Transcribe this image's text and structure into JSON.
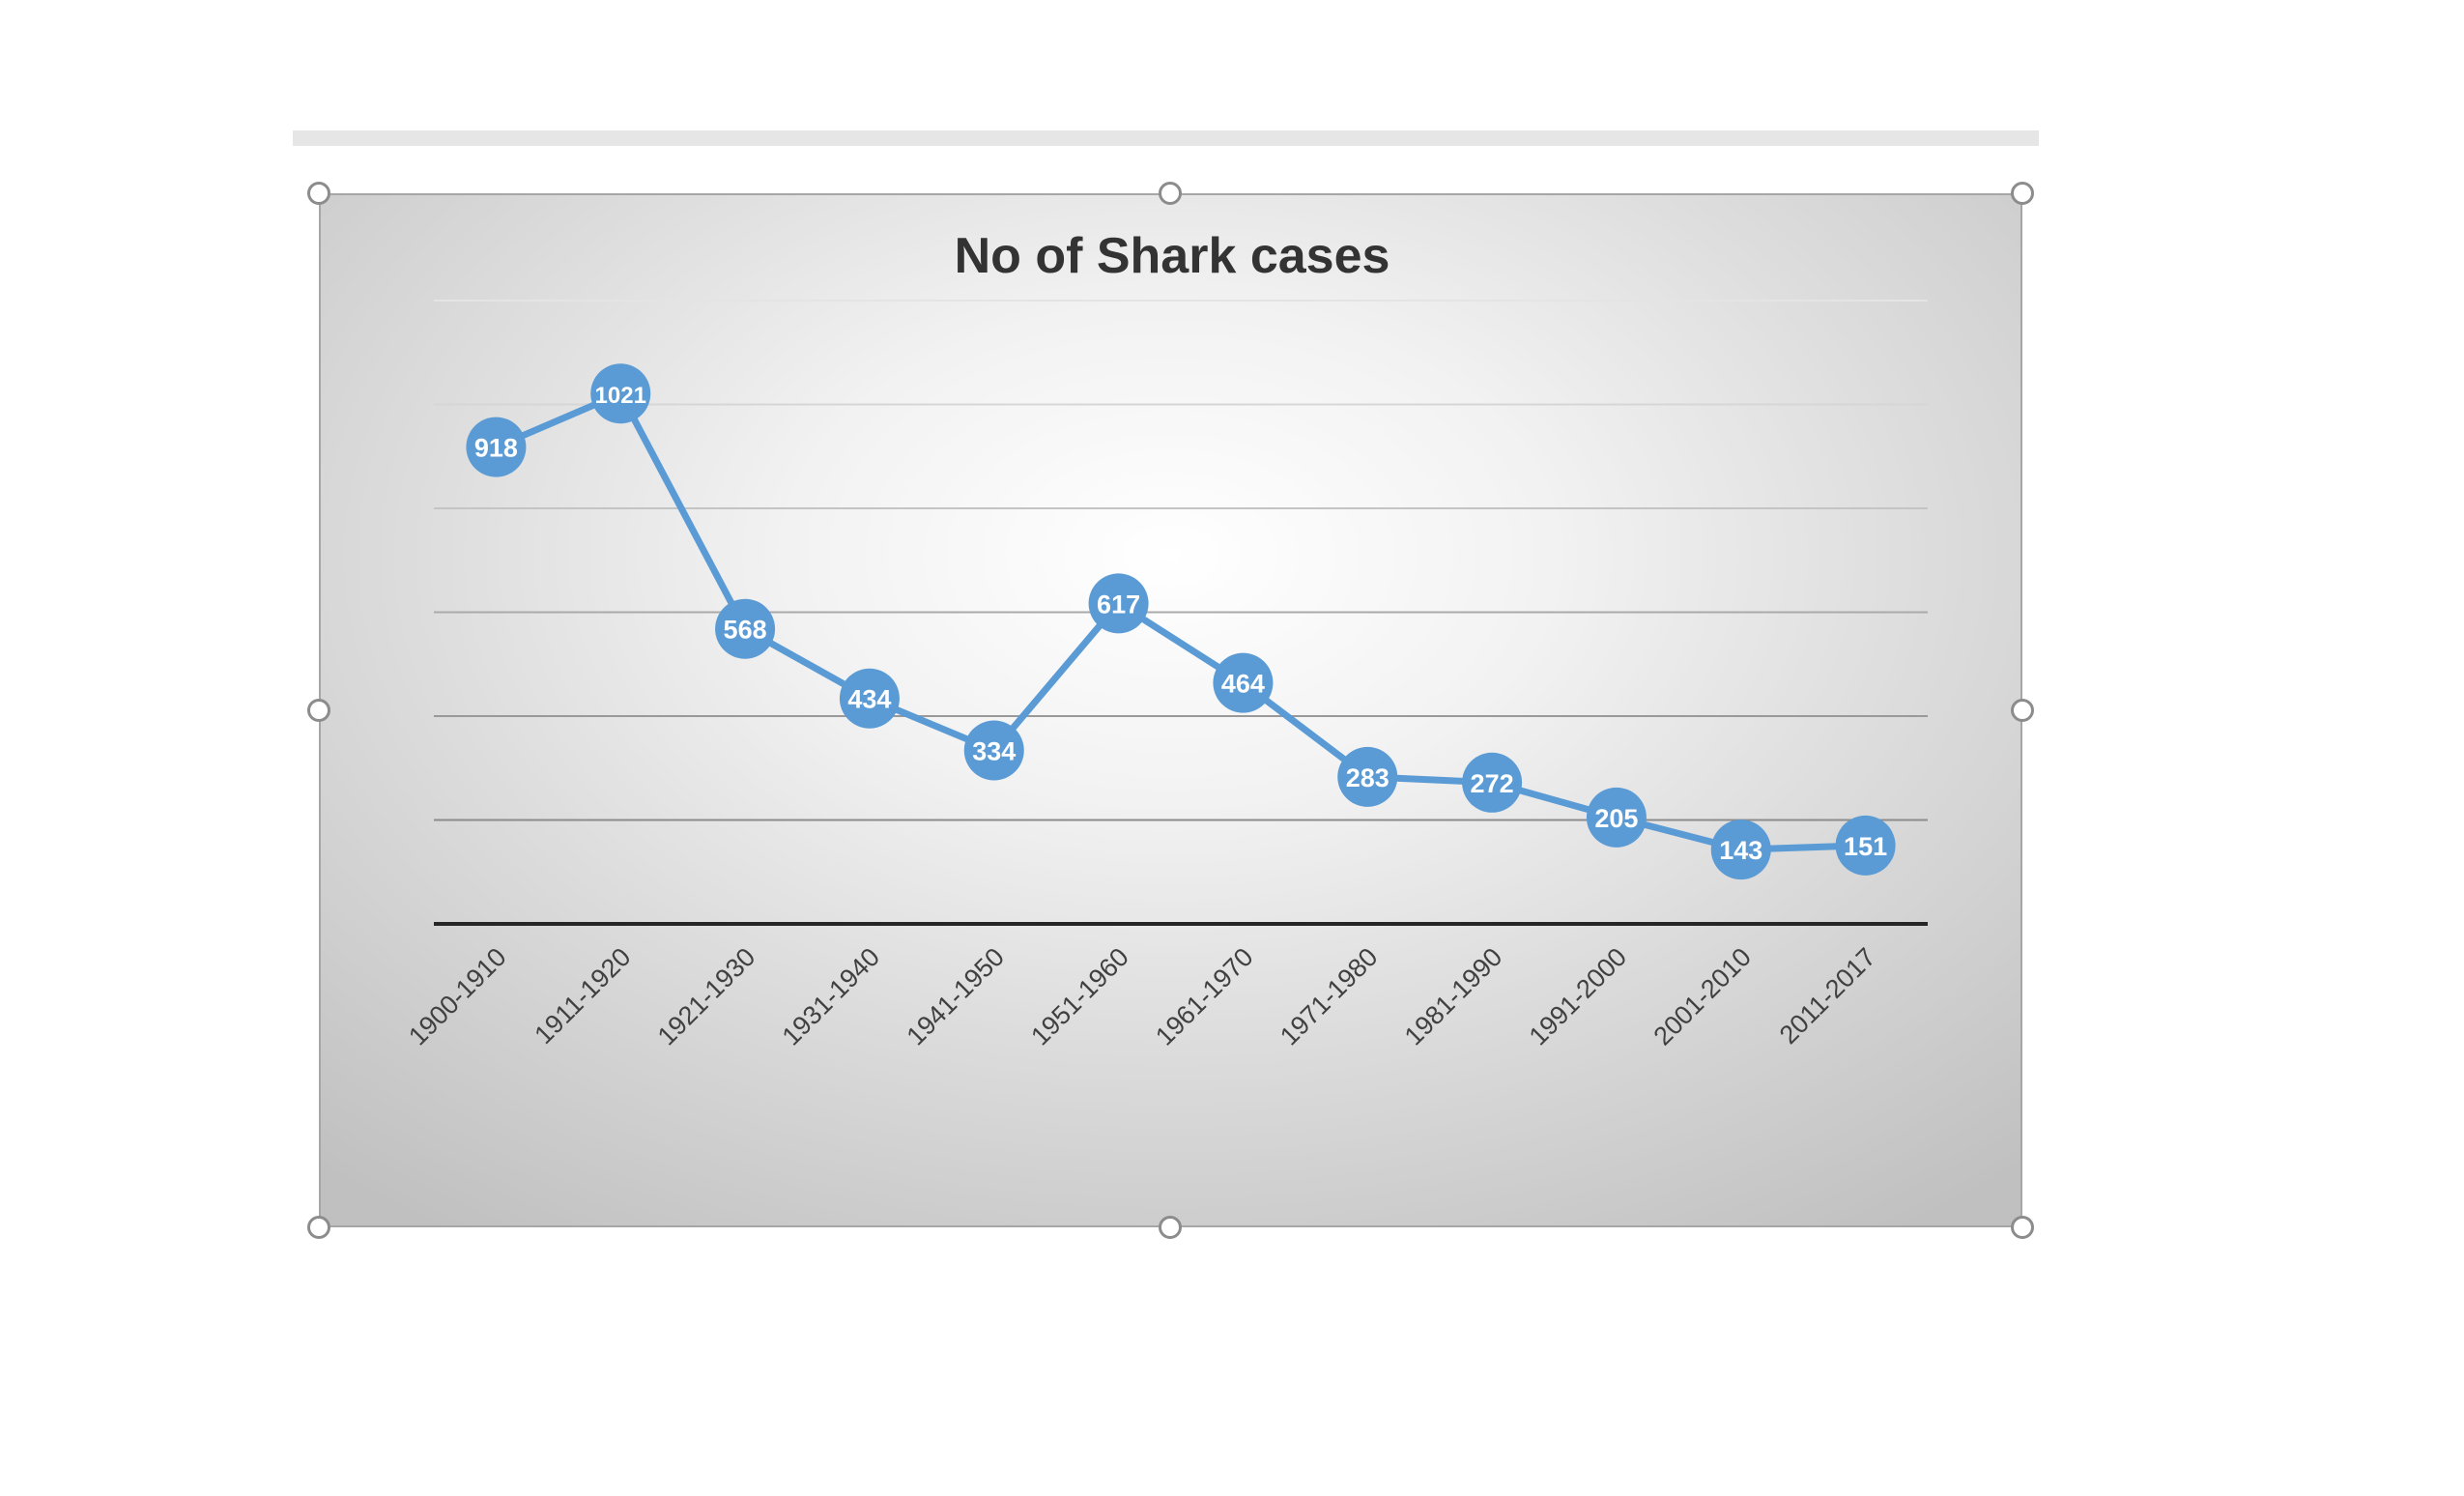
{
  "chart_data": {
    "type": "line",
    "title": "No of Shark cases",
    "xlabel": "",
    "ylabel": "",
    "categories": [
      "1900-1910",
      "1911-1920",
      "1921-1930",
      "1931-1940",
      "1941-1950",
      "1951-1960",
      "1961-1970",
      "1971-1980",
      "1981-1990",
      "1991-2000",
      "2001-2010",
      "2011-2017"
    ],
    "values": [
      918,
      1021,
      568,
      434,
      334,
      617,
      464,
      283,
      272,
      205,
      143,
      151
    ],
    "ylim": [
      0,
      1200
    ],
    "grid": true,
    "data_labels": [
      "918",
      "1021",
      "568",
      "434",
      "334",
      "617",
      "464",
      "283",
      "272",
      "205",
      "143",
      "151"
    ],
    "colors": {
      "series": "#5b9bd5",
      "label_text": "#ffffff",
      "gridline": "#bfbfbf",
      "axis": "#262626",
      "title": "#333333",
      "tick_text": "#404040"
    }
  }
}
